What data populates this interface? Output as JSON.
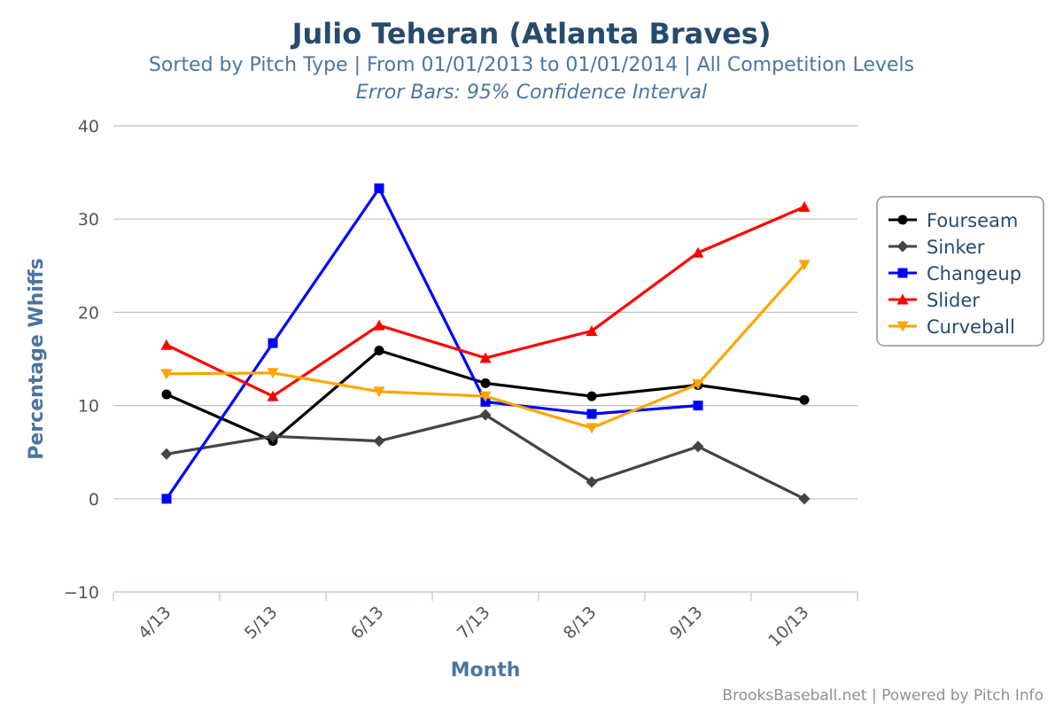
{
  "chart_data": {
    "type": "line",
    "title": "Julio Teheran (Atlanta Braves)",
    "subtitle": "Sorted by Pitch Type | From 01/01/2013 to 01/01/2014 | All Competition Levels",
    "subtitle2": "Error Bars: 95% Confidence Interval",
    "xlabel": "Month",
    "ylabel": "Percentage Whiffs",
    "categories": [
      "4/13",
      "5/13",
      "6/13",
      "7/13",
      "8/13",
      "9/13",
      "10/13"
    ],
    "ylim": [
      -10,
      40
    ],
    "yticks": [
      -10,
      0,
      10,
      20,
      30,
      40
    ],
    "grid": true,
    "legend_position": "right",
    "series": [
      {
        "name": "Fourseam",
        "color": "#000000",
        "marker": "circle",
        "values": [
          11.2,
          6.2,
          15.9,
          12.4,
          11.0,
          12.2,
          10.6
        ]
      },
      {
        "name": "Sinker",
        "color": "#434348",
        "marker": "diamond",
        "values": [
          4.8,
          6.7,
          6.2,
          9.0,
          1.8,
          5.6,
          0.0
        ]
      },
      {
        "name": "Changeup",
        "color": "#0000ff",
        "marker": "square",
        "values": [
          0.0,
          16.7,
          33.3,
          10.4,
          9.1,
          10.0,
          null
        ]
      },
      {
        "name": "Slider",
        "color": "#ff0000",
        "marker": "triangle",
        "values": [
          16.5,
          11.0,
          18.6,
          15.1,
          18.0,
          26.4,
          31.3
        ]
      },
      {
        "name": "Curveball",
        "color": "#ffa500",
        "marker": "triangle-down",
        "values": [
          13.4,
          13.5,
          11.5,
          11.0,
          7.6,
          12.3,
          25.1
        ]
      }
    ]
  },
  "credits": "BrooksBaseball.net | Powered by Pitch Info"
}
